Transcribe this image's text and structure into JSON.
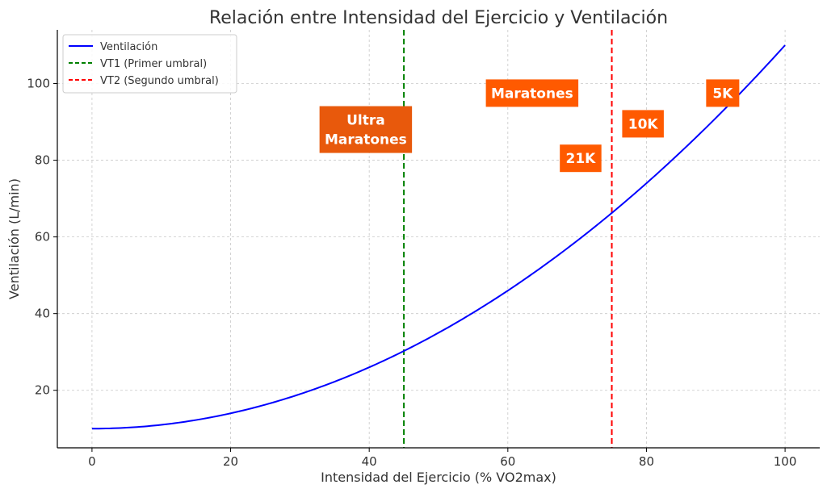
{
  "chart_data": {
    "type": "line",
    "title": "Relación entre Intensidad del Ejercicio y Ventilación",
    "xlabel": "Intensidad del Ejercicio (% VO2max)",
    "ylabel": "Ventilación (L/min)",
    "xlim": [
      -5,
      105
    ],
    "ylim": [
      5,
      114
    ],
    "xticks": [
      0,
      20,
      40,
      60,
      80,
      100
    ],
    "yticks": [
      20,
      40,
      60,
      80,
      100
    ],
    "grid": true,
    "legend_position": "top-left",
    "series": [
      {
        "name": "Ventilación",
        "color": "#0000ff",
        "formula": "10 + 0.01 * x^2",
        "x": [
          0,
          10,
          20,
          30,
          40,
          45,
          50,
          60,
          70,
          75,
          80,
          90,
          100
        ],
        "y": [
          10,
          11,
          14,
          19,
          26,
          30.25,
          35,
          46,
          59,
          66.25,
          74,
          91,
          110
        ]
      }
    ],
    "vlines": [
      {
        "name": "VT1 (Primer umbral)",
        "x": 45,
        "color": "#008000",
        "style": "dashed"
      },
      {
        "name": "VT2 (Segundo umbral)",
        "x": 75,
        "color": "#ff0000",
        "style": "dashed"
      }
    ],
    "annotations": [
      {
        "lines": [
          "Ultra",
          "Maratones"
        ],
        "x": 39.5,
        "y": 88,
        "color": "#e8590c"
      },
      {
        "lines": [
          "Maratones"
        ],
        "x": 63.5,
        "y": 97.5,
        "color": "#ff5a00"
      },
      {
        "lines": [
          "10K"
        ],
        "x": 79.5,
        "y": 89.5,
        "color": "#ff5a00"
      },
      {
        "lines": [
          "21K"
        ],
        "x": 70.5,
        "y": 80.5,
        "color": "#ff5a00"
      },
      {
        "lines": [
          "5K"
        ],
        "x": 91,
        "y": 97.5,
        "color": "#ff5a00"
      }
    ]
  }
}
